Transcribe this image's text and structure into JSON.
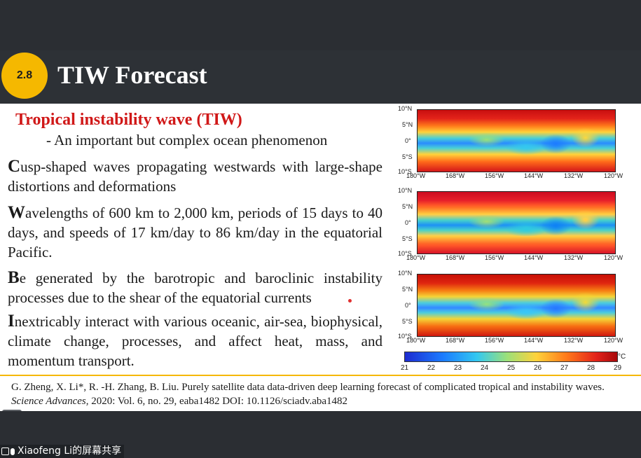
{
  "slide": {
    "badge": "2.8",
    "title": "TIW Forecast",
    "subhead": "Tropical instability wave (TIW)",
    "subline": "- An important but complex ocean phenomenon",
    "bullets": [
      {
        "cap": "C",
        "rest": "usp-shaped waves propagating westwards with large-shape distortions and deformations"
      },
      {
        "cap": "W",
        "rest": "avelengths of 600 km to 2,000 km, periods of 15 days to 40 days, and speeds of 17 km/day to 86 km/day in the equatorial Pacific."
      },
      {
        "cap": "B",
        "rest": "e generated by the barotropic and baroclinic instability processes due to the shear of the equatorial currents"
      },
      {
        "cap": "I",
        "rest": "nextricably interact with various oceanic, air-sea, biophysical, climate change, processes, and affect heat, mass, and momentum transport."
      }
    ],
    "maps": {
      "lat_labels": [
        "10°N",
        "5°N",
        "0°",
        "5°S",
        "10°S"
      ],
      "lon_labels": [
        "180°W",
        "168°W",
        "156°W",
        "144°W",
        "132°W",
        "120°W"
      ],
      "colorbar": {
        "ticks": [
          "21",
          "22",
          "23",
          "24",
          "25",
          "26",
          "27",
          "28",
          "29"
        ],
        "unit": "°C",
        "colors": [
          "#1d2bd0",
          "#1c7cff",
          "#33c8f0",
          "#9be07a",
          "#ffd23a",
          "#ff7a1a",
          "#e3231a",
          "#a8080a"
        ]
      }
    },
    "reference": {
      "authors": "G. Zheng, X. Li*, R. -H. Zhang, B. Liu. Purely satellite data data-driven deep learning forecast of complicated tropical and instability waves. ",
      "journal": "Science Advances",
      "details": ", 2020: Vol. 6, no. 29, eaba1482 DOI: 10.1126/sciadv.aba1482"
    },
    "accent_color": "#f5b800",
    "subhead_color": "#d01818"
  },
  "screen_share": {
    "label": "Xiaofeng Li的屏幕共享",
    "tile_glyph": "☷"
  }
}
